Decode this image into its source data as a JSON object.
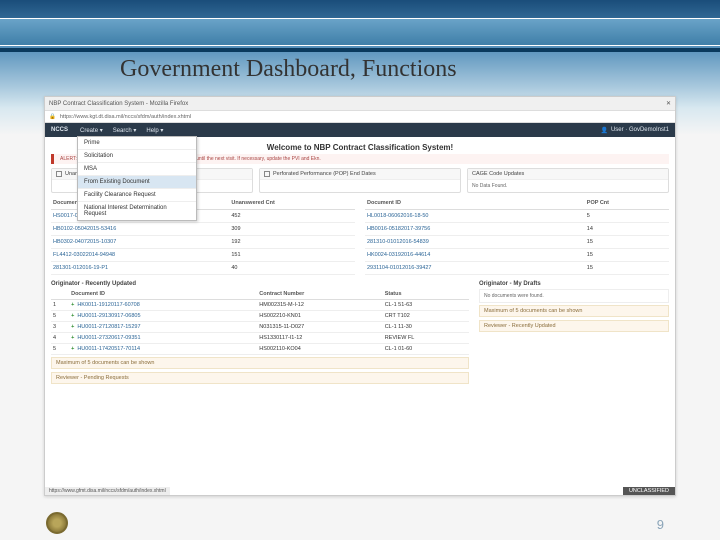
{
  "slide": {
    "title": "Government Dashboard, Functions",
    "page_number": "9"
  },
  "browser": {
    "tab_title": "NBP Contract Classification System - Mozilla Firefox",
    "close_glyph": "✕",
    "lock_glyph": "🔒",
    "url": "https://www.kgt.dt.disa.mil/nccs/sfdm/auth/index.xhtml",
    "status_url": "https://www.gfmt.disa.mil/nccs/sfdm/auth/index.xhtml"
  },
  "nav": {
    "brand": "NCCS",
    "items": [
      "Create ▾",
      "Search ▾",
      "Help ▾"
    ],
    "user_icon": "👤",
    "user": "User · GovDemoInst1"
  },
  "dropdown": {
    "items": [
      "Prime",
      "Solicitation",
      "MSA",
      "From Existing Document",
      "Facility Clearance Request",
      "National Interest Determination Request"
    ],
    "highlight_index": 3
  },
  "welcome": "Welcome to NBP Contract Classification System!",
  "alert": "ALERT: Until you open one in the dashboard it may not show until the next visit. If necessary, update the PVI and Ekn.",
  "panels": [
    {
      "title": "Unanswered",
      "checkbox": true
    },
    {
      "title": "Perforated Performance (POP) End Dates",
      "checkbox": true
    },
    {
      "title": "CAGE Code Updates",
      "checkbox": false,
      "body": "No Data Found."
    }
  ],
  "doclists": {
    "left": {
      "headers": [
        "Document ID",
        "Unanswered Cnt"
      ],
      "rows": [
        [
          "HS0017-0495045-A01/7",
          "452"
        ],
        [
          "HB0102-05042015-53416",
          "309"
        ],
        [
          "HB0302-04072015-10307",
          "192"
        ],
        [
          "FL4412-03022014-94948",
          "151"
        ],
        [
          "281301-012016-19-P1",
          "40"
        ]
      ]
    },
    "right": {
      "headers": [
        "Document ID",
        "POP Cnt"
      ],
      "rows": [
        [
          "HL0018-06062016-18-50",
          "5"
        ],
        [
          "HB0016-05182017-39756",
          "14"
        ],
        [
          "281310-01012016-54839",
          "15"
        ],
        [
          "HK0024-03192016-44614",
          "15"
        ],
        [
          "2931104-01012016-39427",
          "15"
        ]
      ]
    }
  },
  "originator": {
    "left_title": "Originator - Recently Updated",
    "right_title": "Originator - My Drafts",
    "right_body": "No documents were found.",
    "headers": [
      "",
      "Document ID",
      "Contract Number",
      "Status"
    ],
    "rows": [
      [
        "1",
        "HK0011-19120117-60708",
        "HM002315-M-I-12",
        "CL-1  51-63"
      ],
      [
        "5",
        "HU0011-29130917-06805",
        "HS002210-KN01",
        "CRT T102"
      ],
      [
        "3",
        "HU0011-27120817-15297",
        "N031315-11-D027",
        "CL-1  11-30"
      ],
      [
        "4",
        "HU0011-27320617-09351",
        "HS1330117-I1-12",
        "REVIEW FL"
      ],
      [
        "5",
        "HU0011-17420517-70114",
        "HS002110-KO04",
        "CL-1  01-60"
      ]
    ],
    "max_note": "Maximum of 5 documents can be shown",
    "right_max_note": "Maximum of 5 documents can be shown"
  },
  "reviewer": {
    "left_title": "Reviewer - Pending Requests",
    "right_title": "Reviewer - Recently Updated"
  },
  "classification": "UNCLASSIFIED"
}
